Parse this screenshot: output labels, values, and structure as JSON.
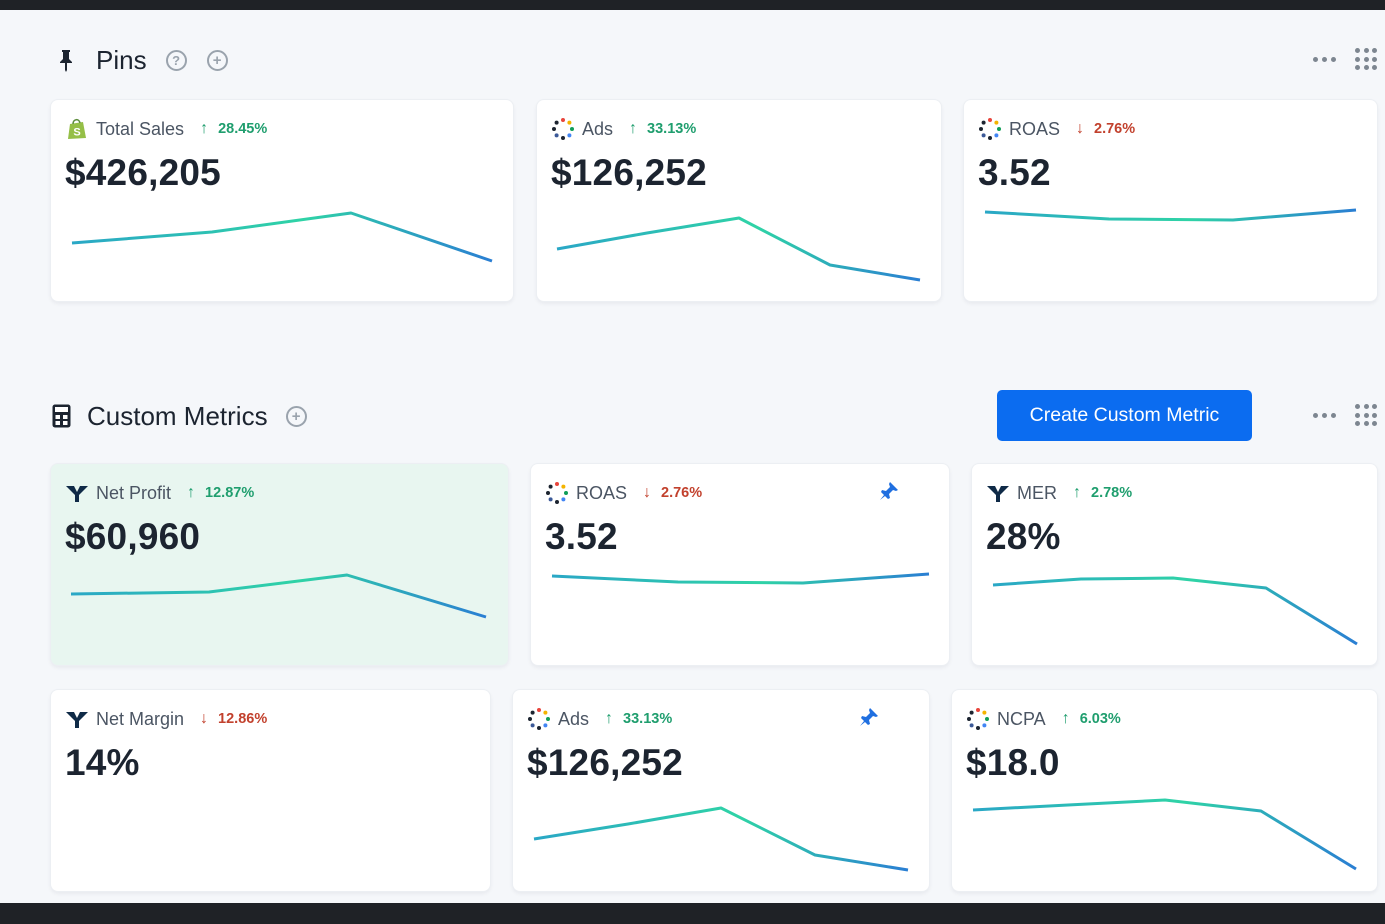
{
  "pins": {
    "title": "Pins",
    "cards": [
      {
        "label": "Total Sales",
        "delta": "28.45%",
        "direction": "up",
        "value": "$426,205",
        "source_icon": "shopify-icon"
      },
      {
        "label": "Ads",
        "delta": "33.13%",
        "direction": "up",
        "value": "$126,252",
        "source_icon": "dots-ring-icon"
      },
      {
        "label": "ROAS",
        "delta": "2.76%",
        "direction": "down",
        "value": "3.52",
        "source_icon": "dots-ring-icon"
      }
    ]
  },
  "custom_metrics": {
    "title": "Custom Metrics",
    "create_button": "Create Custom Metric",
    "cards": [
      {
        "label": "Net Profit",
        "delta": "12.87%",
        "direction": "up",
        "value": "$60,960",
        "source_icon": "brand-y-icon"
      },
      {
        "label": "ROAS",
        "delta": "2.76%",
        "direction": "down",
        "value": "3.52",
        "source_icon": "dots-ring-icon",
        "pinned": true
      },
      {
        "label": "MER",
        "delta": "2.78%",
        "direction": "up",
        "value": "28%",
        "source_icon": "brand-y-icon"
      },
      {
        "label": "Net Margin",
        "delta": "12.86%",
        "direction": "down",
        "value": "14%",
        "source_icon": "brand-y-icon"
      },
      {
        "label": "Ads",
        "delta": "33.13%",
        "direction": "up",
        "value": "$126,252",
        "source_icon": "dots-ring-icon",
        "pinned": true
      },
      {
        "label": "NCPA",
        "delta": "6.03%",
        "direction": "up",
        "value": "$18.0",
        "source_icon": "dots-ring-icon"
      }
    ]
  },
  "colors": {
    "accent": "#0b6cf0",
    "up": "#1f9e6e",
    "down": "#c2412d",
    "spark_start": "#2bd1a7",
    "spark_end": "#2a7ed3",
    "highlight_card": "#e8f6f0"
  }
}
